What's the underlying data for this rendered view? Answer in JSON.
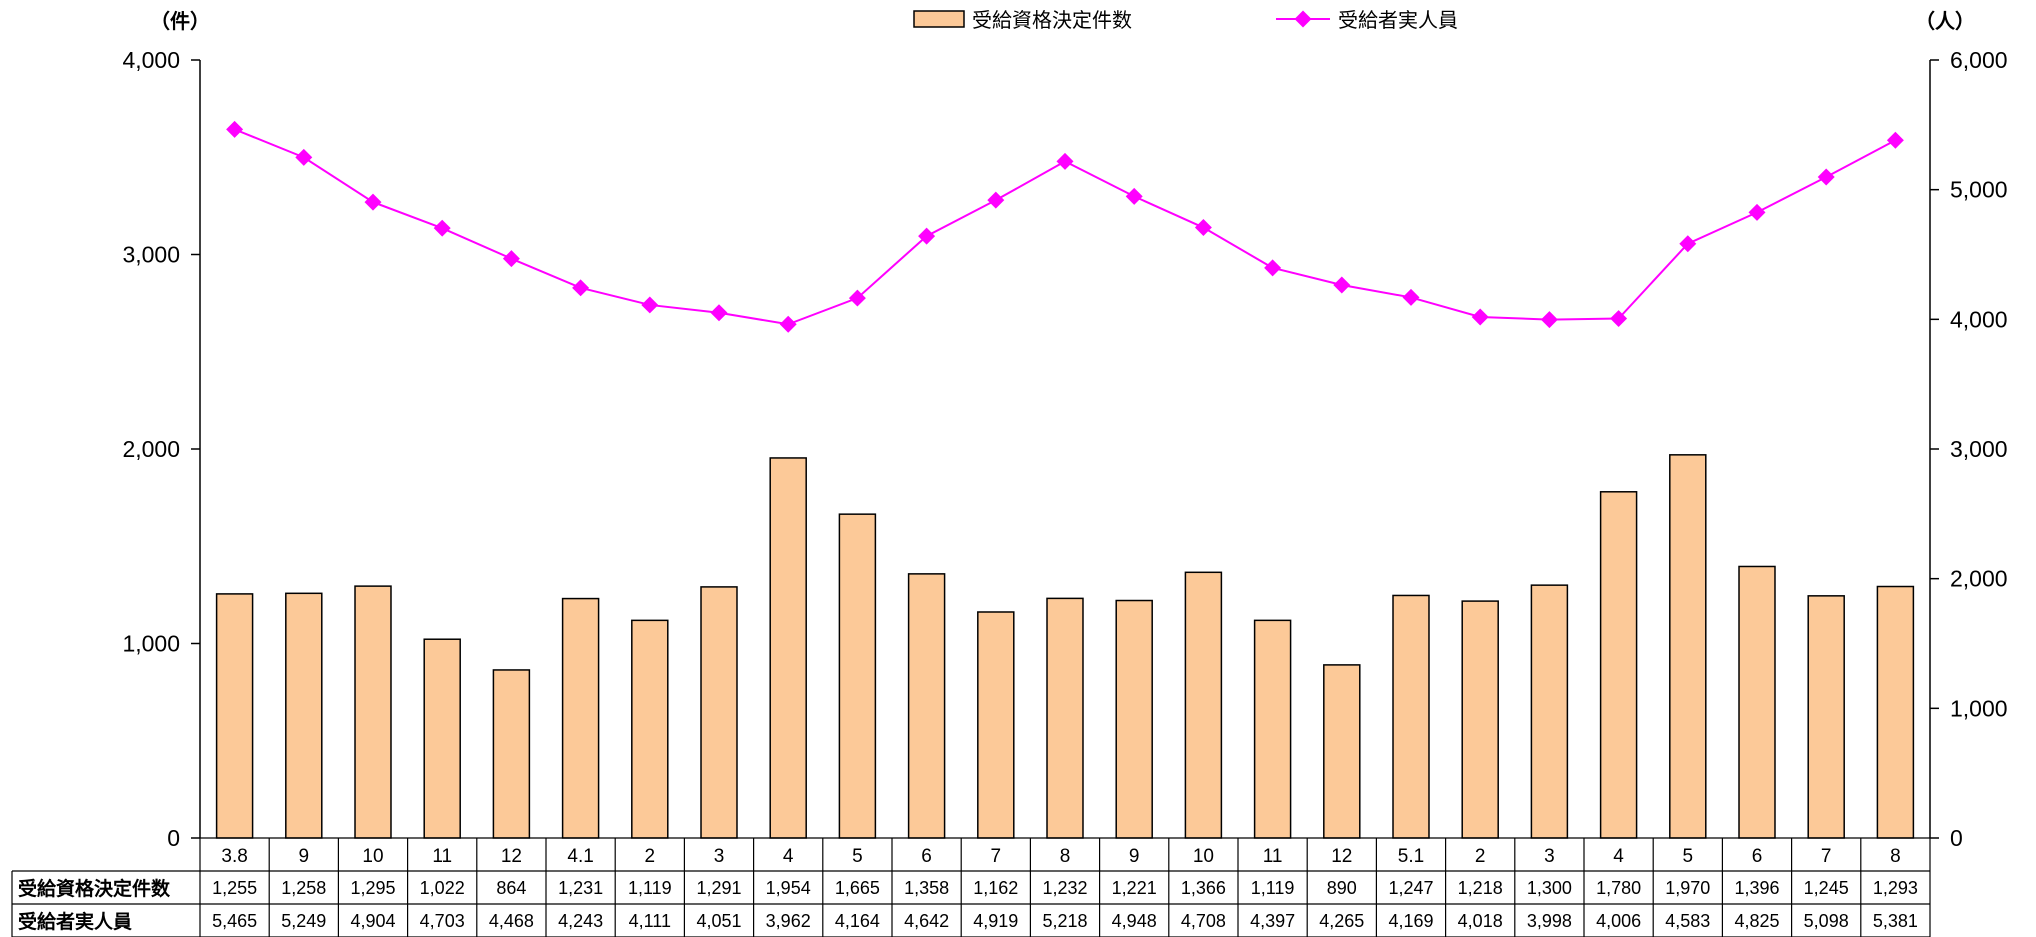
{
  "chart_data": {
    "type": "bar",
    "units": {
      "left": "（件）",
      "right": "（人）"
    },
    "left_axis": {
      "ticks": [
        "0",
        "1,000",
        "2,000",
        "3,000",
        "4,000"
      ],
      "ylim": [
        0,
        4000
      ]
    },
    "right_axis": {
      "ticks": [
        "0",
        "1,000",
        "2,000",
        "3,000",
        "4,000",
        "5,000",
        "6,000"
      ],
      "ylim": [
        0,
        6000
      ]
    },
    "categories": [
      "3.8",
      "9",
      "10",
      "11",
      "12",
      "4.1",
      "2",
      "3",
      "4",
      "5",
      "6",
      "7",
      "8",
      "9",
      "10",
      "11",
      "12",
      "5.1",
      "2",
      "3",
      "4",
      "5",
      "6",
      "7",
      "8"
    ],
    "series": [
      {
        "name": "受給資格決定件数",
        "type": "bar",
        "axis": "left",
        "color": "#FCC998",
        "values": [
          1255,
          1258,
          1295,
          1022,
          864,
          1231,
          1119,
          1291,
          1954,
          1665,
          1358,
          1162,
          1232,
          1221,
          1366,
          1119,
          890,
          1247,
          1218,
          1300,
          1780,
          1970,
          1396,
          1245,
          1293
        ],
        "labels": [
          "1,255",
          "1,258",
          "1,295",
          "1,022",
          "864",
          "1,231",
          "1,119",
          "1,291",
          "1,954",
          "1,665",
          "1,358",
          "1,162",
          "1,232",
          "1,221",
          "1,366",
          "1,119",
          "890",
          "1,247",
          "1,218",
          "1,300",
          "1,780",
          "1,970",
          "1,396",
          "1,245",
          "1,293"
        ]
      },
      {
        "name": "受給者実人員",
        "type": "line",
        "axis": "right",
        "color": "#FF00FF",
        "values": [
          5465,
          5249,
          4904,
          4703,
          4468,
          4243,
          4111,
          4051,
          3962,
          4164,
          4642,
          4919,
          5218,
          4948,
          4708,
          4397,
          4265,
          4169,
          4018,
          3998,
          4006,
          4583,
          4825,
          5098,
          5381
        ],
        "labels": [
          "5,465",
          "5,249",
          "4,904",
          "4,703",
          "4,468",
          "4,243",
          "4,111",
          "4,051",
          "3,962",
          "4,164",
          "4,642",
          "4,919",
          "5,218",
          "4,948",
          "4,708",
          "4,397",
          "4,265",
          "4,169",
          "4,018",
          "3,998",
          "4,006",
          "4,583",
          "4,825",
          "5,098",
          "5,381"
        ]
      }
    ],
    "legend": "top-center",
    "grid": false
  }
}
